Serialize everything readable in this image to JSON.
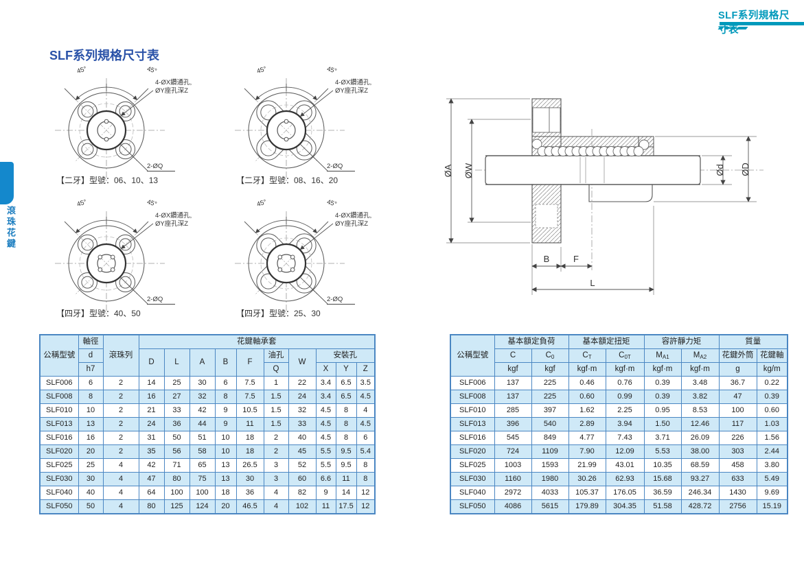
{
  "page": {
    "top_tab": "SLF系列規格尺寸表",
    "side_tab": "滾珠花鍵",
    "title": "SLF系列規格尺寸表"
  },
  "colors": {
    "accent_teal": "#0099bb",
    "tab_blue": "#1488cc",
    "title_blue": "#2a52a8",
    "table_border": "#4a86c2",
    "table_fill": "#cfe9f7"
  },
  "flange": {
    "annotations": {
      "angle_left": "45°",
      "angle_right": "45°",
      "holes_line1": "4-ØX鑽通孔,",
      "holes_line2": "ØY座孔深Z",
      "oil_hole": "2-ØQ"
    },
    "items": [
      {
        "caption": "【二牙】型號：06、10、13"
      },
      {
        "caption": "【二牙】型號：08、16、20"
      },
      {
        "caption": "【四牙】型號：40、50"
      },
      {
        "caption": "【四牙】型號：25、30"
      }
    ]
  },
  "section_drawing": {
    "dims": {
      "oa": "ØA",
      "ow": "ØW",
      "od_small": "Ød",
      "od_big": "ØD",
      "b": "B",
      "f": "F",
      "l": "L"
    }
  },
  "left_table": {
    "headers": {
      "model": "公稱型號",
      "shaft_dia": "軸徑",
      "d": "d",
      "h7": "h7",
      "ball_rows": "滾珠列",
      "nut_group": "花鍵軸承套",
      "D": "D",
      "L": "L",
      "A": "A",
      "B": "B",
      "F": "F",
      "oil": "油孔",
      "Q": "Q",
      "W": "W",
      "mount": "安裝孔",
      "X": "X",
      "Y": "Y",
      "Z": "Z"
    },
    "rows": [
      [
        "SLF006",
        "6",
        "2",
        "14",
        "25",
        "30",
        "6",
        "7.5",
        "1",
        "22",
        "3.4",
        "6.5",
        "3.5"
      ],
      [
        "SLF008",
        "8",
        "2",
        "16",
        "27",
        "32",
        "8",
        "7.5",
        "1.5",
        "24",
        "3.4",
        "6.5",
        "4.5"
      ],
      [
        "SLF010",
        "10",
        "2",
        "21",
        "33",
        "42",
        "9",
        "10.5",
        "1.5",
        "32",
        "4.5",
        "8",
        "4"
      ],
      [
        "SLF013",
        "13",
        "2",
        "24",
        "36",
        "44",
        "9",
        "11",
        "1.5",
        "33",
        "4.5",
        "8",
        "4.5"
      ],
      [
        "SLF016",
        "16",
        "2",
        "31",
        "50",
        "51",
        "10",
        "18",
        "2",
        "40",
        "4.5",
        "8",
        "6"
      ],
      [
        "SLF020",
        "20",
        "2",
        "35",
        "56",
        "58",
        "10",
        "18",
        "2",
        "45",
        "5.5",
        "9.5",
        "5.4"
      ],
      [
        "SLF025",
        "25",
        "4",
        "42",
        "71",
        "65",
        "13",
        "26.5",
        "3",
        "52",
        "5.5",
        "9.5",
        "8"
      ],
      [
        "SLF030",
        "30",
        "4",
        "47",
        "80",
        "75",
        "13",
        "30",
        "3",
        "60",
        "6.6",
        "11",
        "8"
      ],
      [
        "SLF040",
        "40",
        "4",
        "64",
        "100",
        "100",
        "18",
        "36",
        "4",
        "82",
        "9",
        "14",
        "12"
      ],
      [
        "SLF050",
        "50",
        "4",
        "80",
        "125",
        "124",
        "20",
        "46.5",
        "4",
        "102",
        "11",
        "17.5",
        "12"
      ]
    ]
  },
  "right_table": {
    "headers": {
      "model": "公稱型號",
      "basic_load": "基本額定負荷",
      "basic_torque": "基本額定扭矩",
      "static_moment": "容許靜力矩",
      "mass": "質量"
    },
    "symbols": [
      {
        "t": "C",
        "s": ""
      },
      {
        "t": "C",
        "s": "0"
      },
      {
        "t": "C",
        "s": "T"
      },
      {
        "t": "C",
        "s": "0T"
      },
      {
        "t": "M",
        "s": "A1"
      },
      {
        "t": "M",
        "s": "A2"
      },
      {
        "t": "花鍵外筒",
        "s": ""
      },
      {
        "t": "花鍵軸",
        "s": ""
      }
    ],
    "units": [
      "kgf",
      "kgf",
      "kgf·m",
      "kgf·m",
      "kgf·m",
      "kgf·m",
      "g",
      "kg/m"
    ],
    "rows": [
      [
        "SLF006",
        "137",
        "225",
        "0.46",
        "0.76",
        "0.39",
        "3.48",
        "36.7",
        "0.22"
      ],
      [
        "SLF008",
        "137",
        "225",
        "0.60",
        "0.99",
        "0.39",
        "3.82",
        "47",
        "0.39"
      ],
      [
        "SLF010",
        "285",
        "397",
        "1.62",
        "2.25",
        "0.95",
        "8.53",
        "100",
        "0.60"
      ],
      [
        "SLF013",
        "396",
        "540",
        "2.89",
        "3.94",
        "1.50",
        "12.46",
        "117",
        "1.03"
      ],
      [
        "SLF016",
        "545",
        "849",
        "4.77",
        "7.43",
        "3.71",
        "26.09",
        "226",
        "1.56"
      ],
      [
        "SLF020",
        "724",
        "1109",
        "7.90",
        "12.09",
        "5.53",
        "38.00",
        "303",
        "2.44"
      ],
      [
        "SLF025",
        "1003",
        "1593",
        "21.99",
        "43.01",
        "10.35",
        "68.59",
        "458",
        "3.80"
      ],
      [
        "SLF030",
        "1160",
        "1980",
        "30.26",
        "62.93",
        "15.68",
        "93.27",
        "633",
        "5.49"
      ],
      [
        "SLF040",
        "2972",
        "4033",
        "105.37",
        "176.05",
        "36.59",
        "246.34",
        "1430",
        "9.69"
      ],
      [
        "SLF050",
        "4086",
        "5615",
        "179.89",
        "304.35",
        "51.58",
        "428.72",
        "2756",
        "15.19"
      ]
    ]
  }
}
